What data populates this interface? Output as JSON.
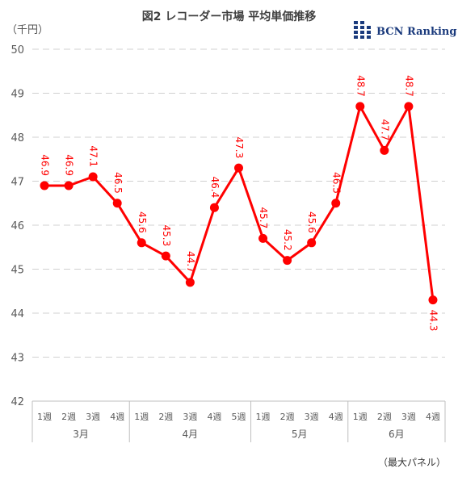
{
  "title": "図2 レコーダー市場 平均単価推移",
  "unit_label": "（千円）",
  "logo_text": "BCN Ranking",
  "footnote": "（最大パネル）",
  "chart_data": {
    "type": "line",
    "categories": [
      "1週",
      "2週",
      "3週",
      "4週",
      "1週",
      "2週",
      "3週",
      "4週",
      "5週",
      "1週",
      "2週",
      "3週",
      "4週",
      "1週",
      "2週",
      "3週",
      "4週"
    ],
    "groups": [
      {
        "label": "3月",
        "count": 4
      },
      {
        "label": "4月",
        "count": 5
      },
      {
        "label": "5月",
        "count": 4
      },
      {
        "label": "6月",
        "count": 4
      }
    ],
    "values": [
      46.9,
      46.9,
      47.1,
      46.5,
      45.6,
      45.3,
      44.7,
      46.4,
      47.3,
      45.7,
      45.2,
      45.6,
      46.5,
      48.7,
      47.7,
      48.7,
      44.3
    ],
    "value_labels": [
      "46.9",
      "46.9",
      "47.1",
      "46.5",
      "45.6",
      "45.3",
      "44.7",
      "46.4",
      "47.3",
      "45.7",
      "45.2",
      "45.6",
      "46.5",
      "48.7",
      "47.7",
      "48.7",
      "44.3"
    ],
    "ylim": [
      42,
      50
    ],
    "yticks": [
      "42",
      "43",
      "44",
      "45",
      "46",
      "47",
      "48",
      "49",
      "50"
    ],
    "grid": true,
    "color": "#ff0000"
  }
}
